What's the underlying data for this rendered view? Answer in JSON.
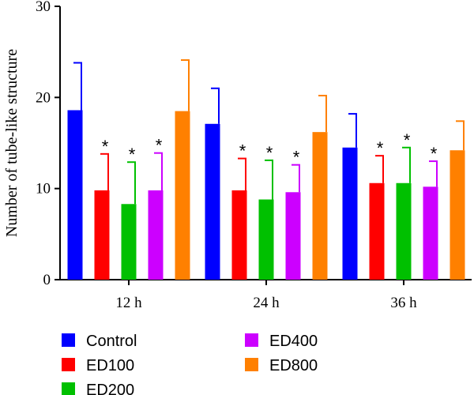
{
  "chart_data": {
    "type": "bar",
    "title": "",
    "xlabel": "",
    "ylabel": "Number of tube-like structure",
    "ylim": [
      0,
      30
    ],
    "yticks": [
      0,
      10,
      20,
      30
    ],
    "categories": [
      "12 h",
      "24 h",
      "36 h"
    ],
    "grid": false,
    "legend_position": "bottom",
    "significance_marker": "*",
    "series": [
      {
        "name": "Control",
        "color": "#0000ff",
        "values": [
          18.6,
          17.1,
          14.5
        ],
        "errors": [
          5.2,
          3.9,
          3.7
        ],
        "significant": [
          false,
          false,
          false
        ]
      },
      {
        "name": "ED100",
        "color": "#ff0000",
        "values": [
          9.8,
          9.8,
          10.6
        ],
        "errors": [
          4.0,
          3.5,
          3.0
        ],
        "significant": [
          true,
          true,
          true
        ]
      },
      {
        "name": "ED200",
        "color": "#00c000",
        "values": [
          8.3,
          8.8,
          10.6
        ],
        "errors": [
          4.6,
          4.3,
          3.9
        ],
        "significant": [
          true,
          true,
          true
        ]
      },
      {
        "name": "ED400",
        "color": "#cc00ff",
        "values": [
          9.8,
          9.6,
          10.2
        ],
        "errors": [
          4.1,
          3.0,
          2.8
        ],
        "significant": [
          true,
          true,
          true
        ]
      },
      {
        "name": "ED800",
        "color": "#ff8000",
        "values": [
          18.5,
          16.2,
          14.2
        ],
        "errors": [
          5.6,
          4.0,
          3.2
        ],
        "significant": [
          false,
          false,
          false
        ]
      }
    ]
  }
}
